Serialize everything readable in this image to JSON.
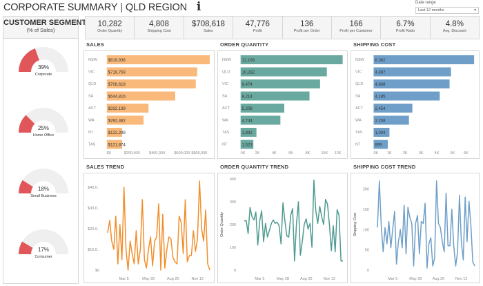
{
  "header": {
    "title": "CORPORATE SUMMARY",
    "region": "QLD REGION",
    "info_icon": "info-icon",
    "date_range_label": "Date range",
    "date_range_value": "Last 12 months"
  },
  "segment": {
    "title": "CUSTOMER SEGMENT",
    "subtitle": "(% of Sales)",
    "accent": "#e15759",
    "track": "#efefef",
    "items": [
      {
        "name": "Corporate",
        "pct": 39,
        "label": "39%"
      },
      {
        "name": "Home Office",
        "pct": 25,
        "label": "25%"
      },
      {
        "name": "Small Business",
        "pct": 18,
        "label": "18%"
      },
      {
        "name": "Consumer",
        "pct": 17,
        "label": "17%"
      }
    ]
  },
  "kpis": [
    {
      "value": "10,282",
      "label": "Order Quantity"
    },
    {
      "value": "4,808",
      "label": "Shipping Cost"
    },
    {
      "value": "$708,618",
      "label": "Sales"
    },
    {
      "value": "47,776",
      "label": "Profit"
    },
    {
      "value": "136",
      "label": "Profit per Order"
    },
    {
      "value": "166",
      "label": "Profit per Customer"
    },
    {
      "value": "6.7%",
      "label": "Profit Ratio"
    },
    {
      "value": "4.8%",
      "label": "Avg. Discount"
    }
  ],
  "chart_data": [
    {
      "type": "bar",
      "title": "SALES",
      "color": "#f8b97a",
      "categories": [
        "NSW",
        "VIC",
        "QLD",
        "SA",
        "ACT",
        "WA",
        "NT",
        "TAS"
      ],
      "values": [
        819936,
        719759,
        708618,
        544816,
        332199,
        292482,
        122299,
        121874
      ],
      "labels": [
        "$819,936",
        "$719,759",
        "$708,618",
        "$544,816",
        "$332,199",
        "$292,482",
        "$122,299",
        "$121,874"
      ],
      "xlim": [
        0,
        820000
      ],
      "ticks": [
        0,
        200000,
        400000,
        600000,
        800000
      ],
      "tick_labels": [
        "$0",
        "$200,000",
        "$400,000",
        "$600,000",
        "$800,000"
      ]
    },
    {
      "type": "bar",
      "title": "ORDER QUANTITY",
      "color": "#69a99f",
      "categories": [
        "NSW",
        "QLD",
        "VIC",
        "SA",
        "ACT",
        "WA",
        "TAS",
        "NT"
      ],
      "values": [
        12169,
        10282,
        9474,
        8214,
        5208,
        4744,
        1892,
        1523
      ],
      "labels": [
        "12,169",
        "10,282",
        "9,474",
        "8,214",
        "5,208",
        "4,744",
        "1,892",
        "1,523"
      ],
      "xlim": [
        0,
        12200
      ],
      "ticks": [
        0,
        2000,
        4000,
        6000,
        8000,
        10000,
        12000
      ],
      "tick_labels": [
        "0K",
        "2K",
        "4K",
        "6K",
        "8K",
        "10K",
        "12K"
      ]
    },
    {
      "type": "bar",
      "title": "SHIPPING COST",
      "color": "#6f9fc8",
      "categories": [
        "NSW",
        "VIC",
        "QLD",
        "SA",
        "ACT",
        "WA",
        "TAS",
        "NT"
      ],
      "values": [
        6362,
        4897,
        4808,
        4185,
        2454,
        2238,
        1004,
        899
      ],
      "labels": [
        "6,362",
        "4,897",
        "4,808",
        "4,185",
        "2,454",
        "2,238",
        "1,004",
        "899"
      ],
      "xlim": [
        0,
        6400
      ],
      "ticks": [
        0,
        1000,
        2000,
        3000,
        4000,
        5000,
        6000
      ],
      "tick_labels": [
        "0K",
        "1K",
        "2K",
        "3K",
        "4K",
        "5K",
        "6K"
      ]
    },
    {
      "type": "line",
      "title": "SALES TREND",
      "color": "#f28e2b",
      "ylabel": "",
      "ylim": [
        0,
        44000
      ],
      "yticks": [
        0,
        10000,
        20000,
        30000,
        40000
      ],
      "ytick_labels": [
        "$0",
        "$10,0..",
        "$20,0..",
        "$30,0..",
        "$40,0.."
      ],
      "xtick_labels": [
        "Mar 5",
        "May 28",
        "Aug 20",
        "Nov 12"
      ],
      "values": [
        18000,
        24000,
        14000,
        10000,
        26000,
        3000,
        22000,
        5000,
        40000,
        10000,
        0,
        14000,
        8000,
        3000,
        19000,
        3000,
        10000,
        34000,
        5000,
        1000,
        10000,
        16000,
        2000,
        14000,
        16000,
        32000,
        0,
        27000,
        1000,
        10000,
        16000,
        15000,
        6000,
        4000,
        3000,
        26000,
        23000,
        8000,
        34000,
        4000,
        7000,
        7000,
        19000,
        9000,
        15000,
        43000,
        20000,
        14000,
        29000,
        3000,
        0
      ]
    },
    {
      "type": "line",
      "title": "ORDER QUANTITY TREND",
      "color": "#4e9a8f",
      "ylabel": "Order Quantity",
      "ylim": [
        0,
        400
      ],
      "yticks": [
        0,
        100,
        200,
        300,
        400
      ],
      "ytick_labels": [
        "0",
        "100",
        "200",
        "300",
        "400"
      ],
      "xtick_labels": [
        "Mar 5",
        "May 28",
        "Aug 20",
        "Nov 12"
      ],
      "values": [
        215,
        218,
        160,
        275,
        235,
        220,
        255,
        110,
        215,
        260,
        125,
        205,
        145,
        175,
        205,
        220,
        205,
        210,
        195,
        115,
        295,
        215,
        150,
        145,
        240,
        270,
        40,
        205,
        300,
        65,
        125,
        200,
        225,
        180,
        205,
        100,
        395,
        260,
        205,
        280,
        235,
        200,
        310,
        290,
        200,
        85,
        195,
        80,
        265,
        240,
        40,
        40
      ]
    },
    {
      "type": "line",
      "title": "SHIPPING COST TREND",
      "color": "#6f9fc8",
      "ylabel": "Shipping Cost",
      "ylim": [
        0,
        225
      ],
      "yticks": [
        0,
        50,
        100,
        150,
        200
      ],
      "ytick_labels": [
        "0",
        "50",
        "100",
        "150",
        "200"
      ],
      "xtick_labels": [
        "Mar 5",
        "May 28",
        "Aug 20",
        "Nov 12"
      ],
      "values": [
        105,
        220,
        110,
        45,
        105,
        65,
        120,
        55,
        100,
        145,
        15,
        70,
        100,
        55,
        160,
        40,
        155,
        130,
        115,
        10,
        115,
        135,
        40,
        120,
        115,
        165,
        5,
        65,
        80,
        10,
        30,
        220,
        115,
        105,
        70,
        45,
        190,
        60,
        60,
        150,
        60,
        10,
        45,
        185,
        70,
        25,
        180,
        70,
        170,
        110,
        20,
        10
      ]
    }
  ]
}
